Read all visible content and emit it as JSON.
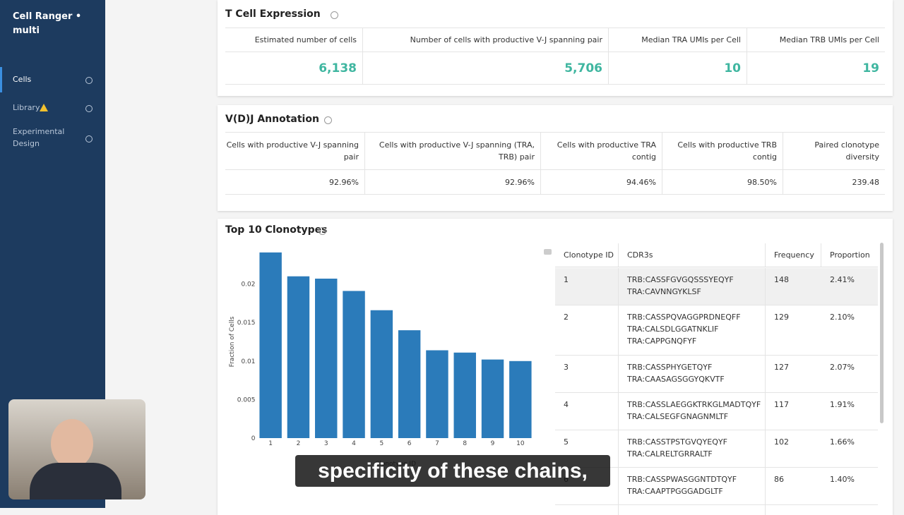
{
  "sidebar": {
    "title": "Cell Ranger • multi",
    "nav": [
      "Cells",
      "Library",
      "Experimental Design"
    ]
  },
  "tcell": {
    "title": "T Cell Expression",
    "metrics": [
      {
        "label": "Estimated number of cells",
        "value": "6,138"
      },
      {
        "label": "Number of cells with productive V-J spanning pair",
        "value": "5,706"
      },
      {
        "label": "Median TRA UMIs per Cell",
        "value": "10"
      },
      {
        "label": "Median TRB UMIs per Cell",
        "value": "19"
      }
    ]
  },
  "vdj": {
    "title": "V(D)J Annotation",
    "metrics": [
      {
        "label": "Cells with productive V-J spanning pair",
        "value": "92.96%"
      },
      {
        "label": "Cells with productive V-J spanning (TRA, TRB) pair",
        "value": "92.96%"
      },
      {
        "label": "Cells with productive TRA contig",
        "value": "94.46%"
      },
      {
        "label": "Cells with productive TRB contig",
        "value": "98.50%"
      },
      {
        "label": "Paired clonotype diversity",
        "value": "239.48"
      }
    ]
  },
  "clonotypes": {
    "title": "Top 10 Clonotypes",
    "table": {
      "headers": [
        "Clonotype ID",
        "CDR3s",
        "Frequency",
        "Proportion"
      ],
      "rows": [
        [
          "1",
          [
            "TRB:CASSFGVGQSSSYEQYF",
            "TRA:CAVNNGYKLSF"
          ],
          "148",
          "2.41%"
        ],
        [
          "2",
          [
            "TRB:CASSPQVAGGPRDNEQFF",
            "TRA:CALSDLGGATNKLIF",
            "TRA:CAPPGNQFYF"
          ],
          "129",
          "2.10%"
        ],
        [
          "3",
          [
            "TRB:CASSPHYGETQYF",
            "TRA:CAASAGSGGYQKVTF"
          ],
          "127",
          "2.07%"
        ],
        [
          "4",
          [
            "TRB:CASSLAEGGKTRKGLMADTQYF",
            "TRA:CALSEGFGNAGNMLTF"
          ],
          "117",
          "1.91%"
        ],
        [
          "5",
          [
            "TRB:CASSTPSTGVQYEQYF",
            "TRA:CALRELTGRRALTF"
          ],
          "102",
          "1.66%"
        ],
        [
          "6",
          [
            "TRB:CASSPWASGGNTDTQYF",
            "TRA:CAAPTPGGGADGLTF"
          ],
          "86",
          "1.40%"
        ]
      ]
    }
  },
  "chart_data": {
    "type": "bar",
    "x_label": "Clonotype ID",
    "y_label": "Fraction of Cells",
    "categories": [
      "1",
      "2",
      "3",
      "4",
      "5",
      "6",
      "7",
      "8",
      "9",
      "10"
    ],
    "values": [
      0.0241,
      0.021,
      0.0207,
      0.0191,
      0.0166,
      0.014,
      0.0114,
      0.0111,
      0.0102,
      0.01
    ],
    "color": "#2b7bba",
    "ylim": [
      0,
      0.025
    ],
    "yticks": [
      0,
      0.005,
      0.01,
      0.015,
      0.02
    ]
  },
  "caption": "specificity of these chains,"
}
